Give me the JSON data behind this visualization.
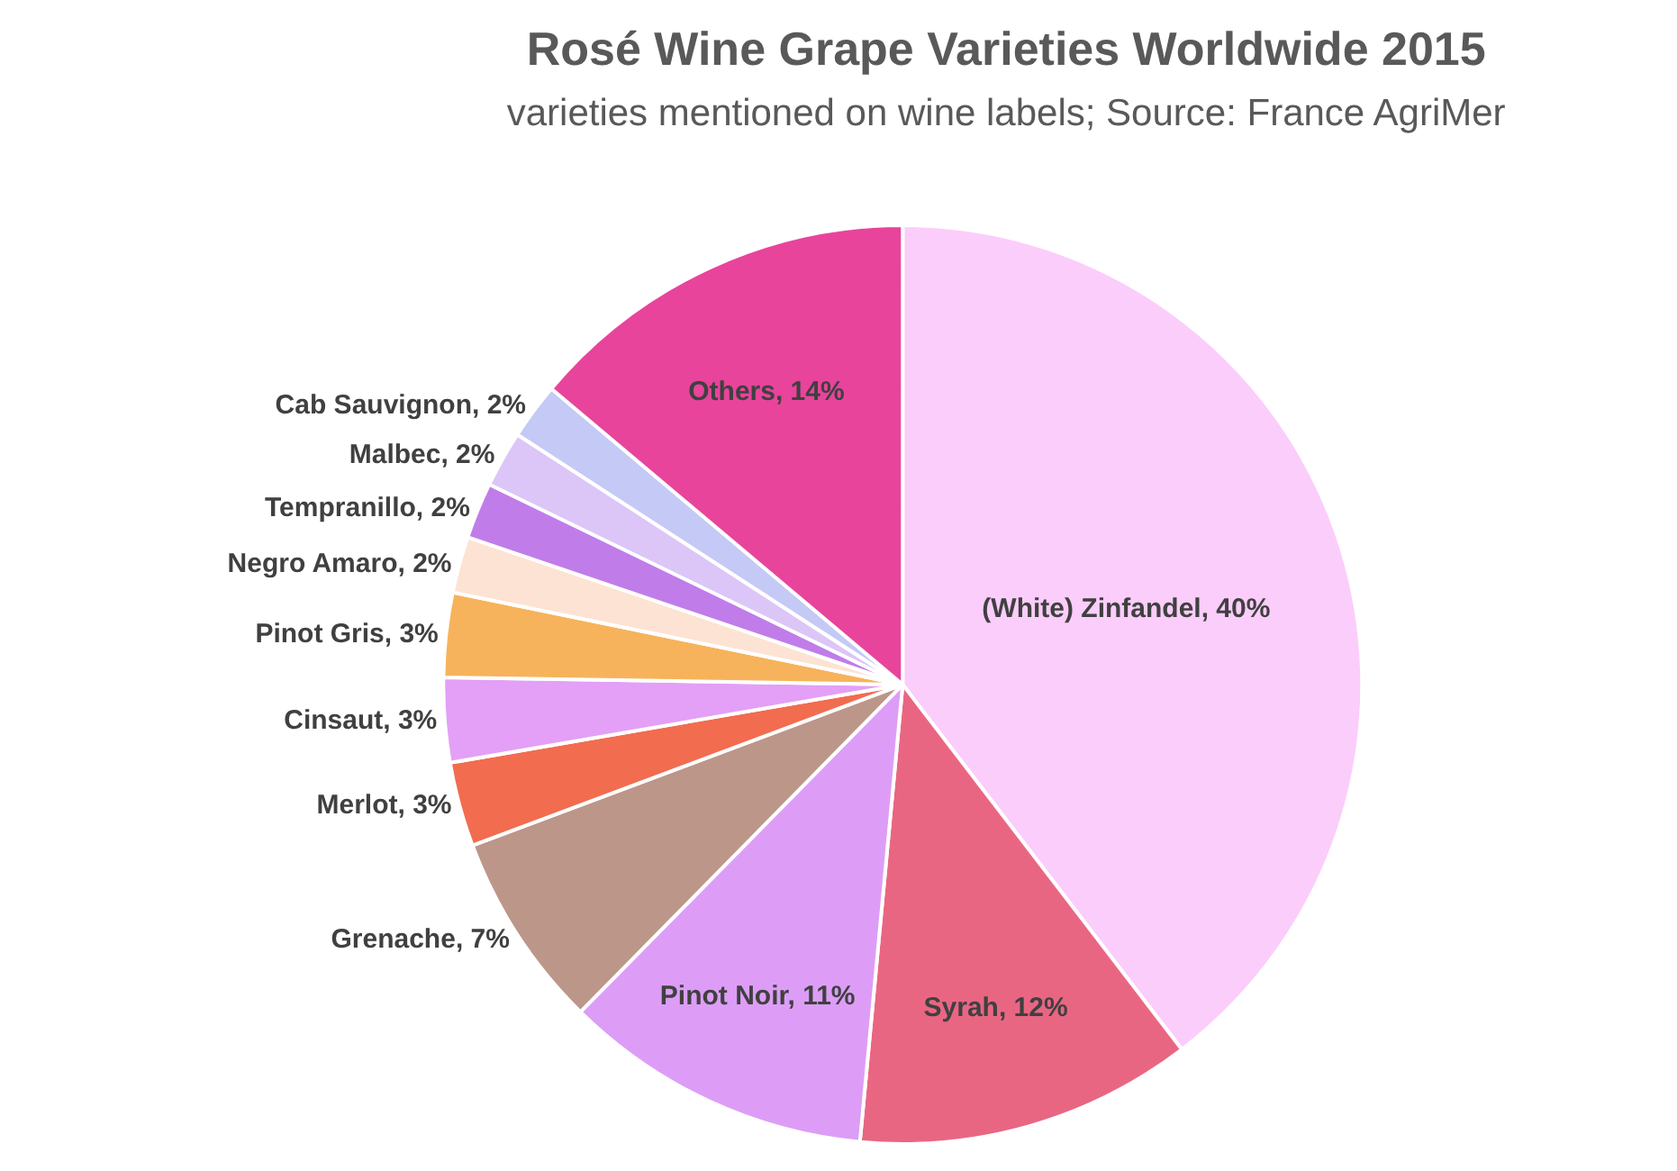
{
  "chart_data": {
    "type": "pie",
    "title": "Rosé Wine Grape Varieties Worldwide 2015",
    "subtitle": "varieties mentioned on wine labels; Source: France AgriMer",
    "categories": [
      "(White) Zinfandel",
      "Syrah",
      "Pinot Noir",
      "Grenache",
      "Merlot",
      "Cinsaut",
      "Pinot Gris",
      "Negro Amaro",
      "Tempranillo",
      "Malbec",
      "Cab Sauvignon",
      "Others"
    ],
    "values": [
      40,
      12,
      11,
      7,
      3,
      3,
      3,
      2,
      2,
      2,
      2,
      14
    ],
    "value_labels": [
      "40%",
      "12%",
      "11%",
      "7%",
      "3%",
      "3%",
      "3%",
      "2%",
      "2%",
      "2%",
      "2%",
      "14%"
    ],
    "colors": [
      "#fbcdfb",
      "#e96683",
      "#dd9df7",
      "#bd968a",
      "#f26c4f",
      "#e3a0f6",
      "#f7b35b",
      "#fde3d4",
      "#c07de9",
      "#dcc6f7",
      "#c4c9f6",
      "#e8449c"
    ],
    "legend": false
  }
}
